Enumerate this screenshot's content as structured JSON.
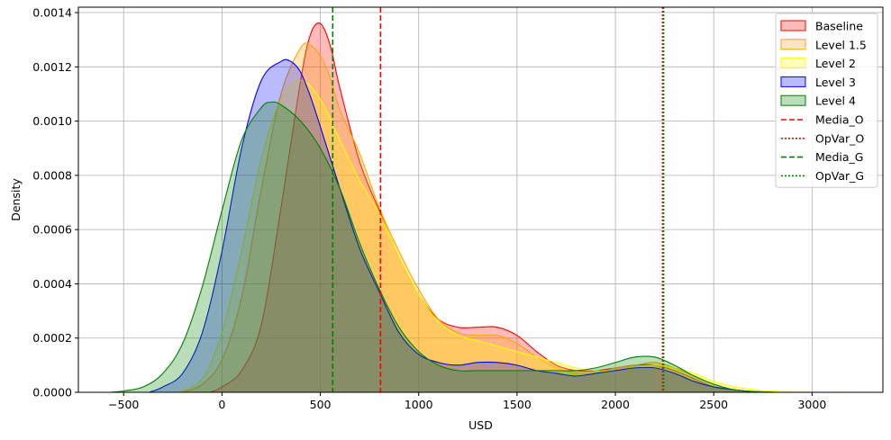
{
  "chart_data": {
    "type": "area",
    "title": "",
    "xlabel": "USD",
    "ylabel": "Density",
    "xlim": [
      -730,
      3360
    ],
    "ylim": [
      0,
      0.00142
    ],
    "xticks": [
      -500,
      0,
      500,
      1000,
      1500,
      2000,
      2500,
      3000
    ],
    "xtick_labels": [
      "−500",
      "0",
      "500",
      "1000",
      "1500",
      "2000",
      "2500",
      "3000"
    ],
    "yticks": [
      0,
      0.0002,
      0.0004,
      0.0006,
      0.0008,
      0.001,
      0.0012,
      0.0014
    ],
    "ytick_labels": [
      "0.0000",
      "0.0002",
      "0.0004",
      "0.0006",
      "0.0008",
      "0.0010",
      "0.0012",
      "0.0014"
    ],
    "grid": true,
    "legend_position": "top-right",
    "series": [
      {
        "name": "Baseline",
        "color": "#ff0000",
        "x": [
          -60,
          0,
          100,
          200,
          300,
          400,
          450,
          500,
          550,
          600,
          700,
          800,
          900,
          1000,
          1100,
          1200,
          1300,
          1400,
          1500,
          1600,
          1700,
          1800,
          1900,
          2000,
          2100,
          2200,
          2300,
          2400,
          2500,
          2600,
          2700,
          2820
        ],
        "y": [
          0,
          2e-05,
          8e-05,
          0.00025,
          0.00068,
          0.00115,
          0.00132,
          0.00136,
          0.00128,
          0.00112,
          0.00085,
          0.00067,
          0.0005,
          0.00036,
          0.00027,
          0.00024,
          0.00024,
          0.00024,
          0.00021,
          0.00015,
          0.0001,
          8e-05,
          8e-05,
          9e-05,
          0.0001,
          0.0001,
          8e-05,
          5e-05,
          2e-05,
          1e-05,
          3e-06,
          0
        ]
      },
      {
        "name": "Level 1.5",
        "color": "#ffa500",
        "x": [
          -200,
          -100,
          0,
          100,
          200,
          300,
          400,
          450,
          500,
          550,
          600,
          700,
          800,
          900,
          1000,
          1100,
          1200,
          1300,
          1400,
          1500,
          1600,
          1700,
          1800,
          1900,
          2000,
          2100,
          2200,
          2300,
          2400,
          2500,
          2600,
          2700,
          2820
        ],
        "y": [
          0,
          3e-05,
          0.00012,
          0.00035,
          0.00075,
          0.0011,
          0.00127,
          0.00128,
          0.00124,
          0.00116,
          0.00104,
          0.00088,
          0.00068,
          0.00052,
          0.00038,
          0.00027,
          0.00022,
          0.00021,
          0.00021,
          0.00018,
          0.00013,
          9e-05,
          7e-05,
          7e-05,
          9e-05,
          0.0001,
          0.00011,
          9e-05,
          6e-05,
          3e-05,
          1e-05,
          3e-06,
          0
        ]
      },
      {
        "name": "Level 2",
        "color": "#ffff00",
        "x": [
          -220,
          -100,
          0,
          100,
          200,
          300,
          400,
          500,
          600,
          700,
          800,
          900,
          1000,
          1100,
          1200,
          1300,
          1400,
          1500,
          1600,
          1700,
          1800,
          1900,
          2000,
          2100,
          2200,
          2300,
          2400,
          2500,
          2600,
          2700,
          2800,
          2900,
          3000,
          3100,
          3190
        ],
        "y": [
          0,
          5e-05,
          0.00022,
          0.00052,
          0.00086,
          0.00108,
          0.00115,
          0.00108,
          0.00093,
          0.00078,
          0.00066,
          0.0005,
          0.00036,
          0.00026,
          0.00021,
          0.00019,
          0.00017,
          0.00015,
          0.00013,
          0.00011,
          9e-05,
          8e-05,
          8e-05,
          9e-05,
          0.0001,
          9e-05,
          7e-05,
          4e-05,
          2e-05,
          1e-05,
          4e-06,
          2e-06,
          1e-06,
          5e-07,
          0
        ]
      },
      {
        "name": "Level 3",
        "color": "#0000ff",
        "x": [
          -370,
          -300,
          -200,
          -100,
          0,
          100,
          200,
          300,
          350,
          400,
          450,
          500,
          600,
          700,
          800,
          900,
          1000,
          1100,
          1200,
          1300,
          1400,
          1500,
          1600,
          1700,
          1800,
          1900,
          2000,
          2100,
          2200,
          2300,
          2400,
          2500,
          2600,
          2700,
          2750
        ],
        "y": [
          0,
          2e-05,
          7e-05,
          0.00022,
          0.00052,
          0.0009,
          0.00115,
          0.00122,
          0.00122,
          0.00118,
          0.00109,
          0.00098,
          0.00075,
          0.00053,
          0.00037,
          0.00022,
          0.00014,
          0.00011,
          0.0001,
          0.00011,
          0.00011,
          0.0001,
          8e-05,
          7e-05,
          6e-05,
          7e-05,
          8e-05,
          9e-05,
          9e-05,
          7e-05,
          4e-05,
          2e-05,
          1e-05,
          2e-06,
          0
        ]
      },
      {
        "name": "Level 4",
        "color": "#008000",
        "x": [
          -570,
          -500,
          -400,
          -300,
          -200,
          -100,
          0,
          100,
          200,
          250,
          300,
          400,
          500,
          600,
          700,
          800,
          900,
          1000,
          1100,
          1200,
          1300,
          1400,
          1500,
          1600,
          1700,
          1800,
          1900,
          2000,
          2100,
          2200,
          2300,
          2400,
          2500,
          2600,
          2700,
          2810
        ],
        "y": [
          0,
          5e-06,
          2e-05,
          7e-05,
          0.00018,
          0.00039,
          0.00067,
          0.00093,
          0.00105,
          0.00107,
          0.00106,
          0.001,
          0.0009,
          0.00075,
          0.00055,
          0.00038,
          0.00024,
          0.00015,
          0.0001,
          8e-05,
          8e-05,
          8e-05,
          8e-05,
          8e-05,
          8e-05,
          8e-05,
          9e-05,
          0.00011,
          0.00013,
          0.00013,
          0.0001,
          6e-05,
          3e-05,
          1e-05,
          3e-06,
          0
        ]
      }
    ],
    "vlines": [
      {
        "name": "Media_O",
        "x": 806,
        "color": "#ff0000",
        "style": "dashed"
      },
      {
        "name": "OpVar_O",
        "x": 2240,
        "color": "#ff0000",
        "style": "dotted"
      },
      {
        "name": "Media_G",
        "x": 563,
        "color": "#008000",
        "style": "dashed"
      },
      {
        "name": "OpVar_G",
        "x": 2245,
        "color": "#008000",
        "style": "dotted"
      }
    ]
  }
}
